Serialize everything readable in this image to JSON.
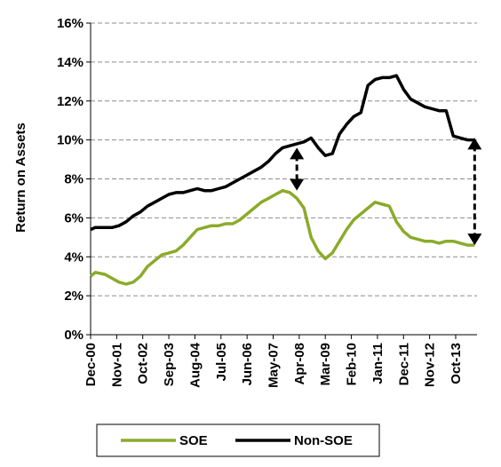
{
  "chart_data": {
    "type": "line",
    "title": "",
    "xlabel": "",
    "ylabel": "Return on Assets",
    "ylim": [
      0,
      16
    ],
    "yticks": [
      "0%",
      "2%",
      "4%",
      "6%",
      "8%",
      "10%",
      "12%",
      "14%",
      "16%"
    ],
    "xtick_labels": [
      "Dec-00",
      "Nov-01",
      "Oct-02",
      "Sep-03",
      "Aug-04",
      "Jul-05",
      "Jun-06",
      "May-07",
      "Apr-08",
      "Mar-09",
      "Feb-10",
      "Jan-11",
      "Dec-11",
      "Nov-12",
      "Oct-13"
    ],
    "grid": "horizontal dashed",
    "legend_position": "bottom",
    "series": [
      {
        "name": "SOE",
        "color": "#8bab2b",
        "x": [
          "Dec-00",
          "Feb-01",
          "Jun-01",
          "Sep-01",
          "Dec-01",
          "Mar-02",
          "Jun-02",
          "Sep-02",
          "Dec-02",
          "Mar-03",
          "Jun-03",
          "Sep-03",
          "Dec-03",
          "Mar-04",
          "Jun-04",
          "Sep-04",
          "Dec-04",
          "Mar-05",
          "Jun-05",
          "Sep-05",
          "Dec-05",
          "Mar-06",
          "Jun-06",
          "Sep-06",
          "Dec-06",
          "Mar-07",
          "Jun-07",
          "Sep-07",
          "Dec-07",
          "Mar-08",
          "Jun-08",
          "Sep-08",
          "Dec-08",
          "Mar-09",
          "Jun-09",
          "Sep-09",
          "Dec-09",
          "Mar-10",
          "Jun-10",
          "Sep-10",
          "Dec-10",
          "Mar-11",
          "Jun-11",
          "Sep-11",
          "Dec-11",
          "Mar-12",
          "Jun-12",
          "Sep-12",
          "Dec-12",
          "Mar-13",
          "Jun-13",
          "Sep-13",
          "Dec-13",
          "Mar-14",
          "Jun-14"
        ],
        "y": [
          3.0,
          3.2,
          3.1,
          2.9,
          2.7,
          2.6,
          2.7,
          3.0,
          3.5,
          3.8,
          4.1,
          4.2,
          4.3,
          4.6,
          5.0,
          5.4,
          5.5,
          5.6,
          5.6,
          5.7,
          5.7,
          5.9,
          6.2,
          6.5,
          6.8,
          7.0,
          7.2,
          7.4,
          7.3,
          7.0,
          6.5,
          5.0,
          4.3,
          3.9,
          4.2,
          4.8,
          5.4,
          5.9,
          6.2,
          6.5,
          6.8,
          6.7,
          6.6,
          5.8,
          5.3,
          5.0,
          4.9,
          4.8,
          4.8,
          4.7,
          4.8,
          4.8,
          4.7,
          4.6,
          4.6
        ]
      },
      {
        "name": "Non-SOE",
        "color": "#000000",
        "x": [
          "Dec-00",
          "Feb-01",
          "Jun-01",
          "Sep-01",
          "Dec-01",
          "Mar-02",
          "Jun-02",
          "Sep-02",
          "Dec-02",
          "Mar-03",
          "Jun-03",
          "Sep-03",
          "Dec-03",
          "Mar-04",
          "Jun-04",
          "Sep-04",
          "Dec-04",
          "Mar-05",
          "Jun-05",
          "Sep-05",
          "Dec-05",
          "Mar-06",
          "Jun-06",
          "Sep-06",
          "Dec-06",
          "Mar-07",
          "Jun-07",
          "Sep-07",
          "Dec-07",
          "Mar-08",
          "Jun-08",
          "Sep-08",
          "Dec-08",
          "Mar-09",
          "Jun-09",
          "Sep-09",
          "Dec-09",
          "Mar-10",
          "Jun-10",
          "Sep-10",
          "Dec-10",
          "Mar-11",
          "Jun-11",
          "Sep-11",
          "Dec-11",
          "Mar-12",
          "Jun-12",
          "Sep-12",
          "Dec-12",
          "Mar-13",
          "Jun-13",
          "Sep-13",
          "Dec-13",
          "Mar-14",
          "Jun-14"
        ],
        "y": [
          5.4,
          5.5,
          5.5,
          5.5,
          5.6,
          5.8,
          6.1,
          6.3,
          6.6,
          6.8,
          7.0,
          7.2,
          7.3,
          7.3,
          7.4,
          7.5,
          7.4,
          7.4,
          7.5,
          7.6,
          7.8,
          8.0,
          8.2,
          8.4,
          8.6,
          8.9,
          9.3,
          9.6,
          9.7,
          9.8,
          9.9,
          10.1,
          9.6,
          9.2,
          9.3,
          10.3,
          10.8,
          11.2,
          11.4,
          12.8,
          13.1,
          13.2,
          13.2,
          13.3,
          12.6,
          12.1,
          11.9,
          11.7,
          11.6,
          11.5,
          11.5,
          10.2,
          10.1,
          10.0,
          10.0
        ]
      }
    ],
    "annotations": [
      {
        "type": "double-arrow",
        "x": "Mar-08",
        "y_from": 9.6,
        "y_to": 7.4,
        "style": "dashed"
      },
      {
        "type": "double-arrow",
        "x": "Jun-14",
        "y_from": 10.1,
        "y_to": 4.6,
        "style": "dashed"
      }
    ]
  }
}
